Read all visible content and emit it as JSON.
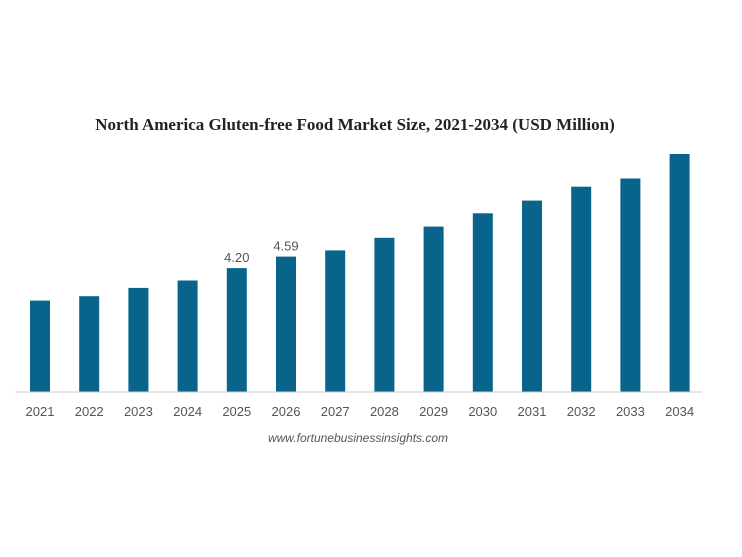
{
  "chart_data": {
    "type": "bar",
    "title": "North America Gluten-free Food Market Size, 2021-2034 (USD Million)",
    "categories": [
      "2021",
      "2022",
      "2023",
      "2024",
      "2025",
      "2026",
      "2027",
      "2028",
      "2029",
      "2030",
      "2031",
      "2032",
      "2033",
      "2034"
    ],
    "values": [
      3.1,
      3.25,
      3.53,
      3.78,
      4.2,
      4.59,
      4.8,
      5.23,
      5.61,
      6.06,
      6.49,
      6.96,
      7.24,
      8.07
    ],
    "data_labels": [
      "",
      "",
      "",
      "",
      "4.20",
      "4.59",
      "",
      "",
      "",
      "",
      "",
      "",
      "",
      ""
    ],
    "ylim": [
      0,
      8.07
    ],
    "grid": false,
    "legend": "none",
    "bar_color": "#08648a",
    "axis_color": "#cccccc"
  },
  "source_text": "www.fortunebusinessinsights.com"
}
